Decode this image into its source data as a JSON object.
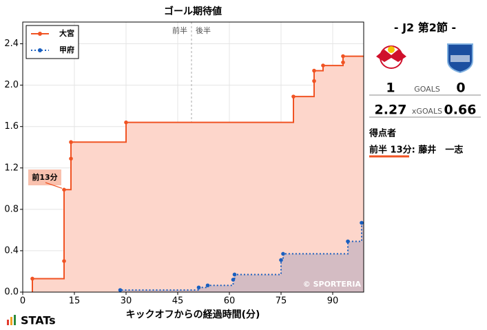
{
  "chart_data": {
    "type": "step",
    "title": "ゴール期待値",
    "x_label": "キックオフからの経過時間(分)",
    "xlim": [
      0,
      99
    ],
    "ylim": [
      0,
      2.61
    ],
    "xticks": [
      0,
      15,
      30,
      45,
      60,
      75,
      90
    ],
    "yticks": [
      {
        "value": 0,
        "label": "0.0"
      },
      0.4,
      0.8,
      1.2,
      1.6,
      {
        "value": 2,
        "label": "2.0"
      },
      2.4
    ],
    "halftime": 49,
    "halftime_labels": [
      "前半",
      "後半"
    ],
    "legend": "upper left",
    "annotation": "前13分",
    "watermark": "© SPORTERIA",
    "series": [
      {
        "name": "大宮",
        "color": "#f05323",
        "fill": "#fdd6cb",
        "line": "solid",
        "x": [
          2.8,
          12,
          12,
          14,
          14,
          30,
          78.6,
          84.6,
          84.6,
          87.2,
          93,
          93
        ],
        "values": [
          0.13,
          0.3,
          0.99,
          1.29,
          1.45,
          1.64,
          1.89,
          2.04,
          2.14,
          2.19,
          2.22,
          2.28
        ]
      },
      {
        "name": "甲府",
        "color": "#1a5fbf",
        "fill": "#d4bcc3",
        "line": "dotted",
        "x": [
          28.3,
          51.1,
          53.7,
          61.1,
          61.5,
          75,
          75.6,
          94.4,
          98.4
        ],
        "values": [
          0.02,
          0.045,
          0.065,
          0.12,
          0.17,
          0.31,
          0.37,
          0.49,
          0.67
        ]
      }
    ]
  },
  "match": {
    "title": "- J2 第2節 -",
    "goals": {
      "label": "GOALS",
      "home": 1,
      "away": 0
    },
    "xgoals": {
      "label": "xGOALS",
      "home": 2.27,
      "away": 0.66
    },
    "scorers_title": "得点者",
    "scorers": [
      "前半 13分: 藤井　一志"
    ]
  },
  "brand": "STATs"
}
